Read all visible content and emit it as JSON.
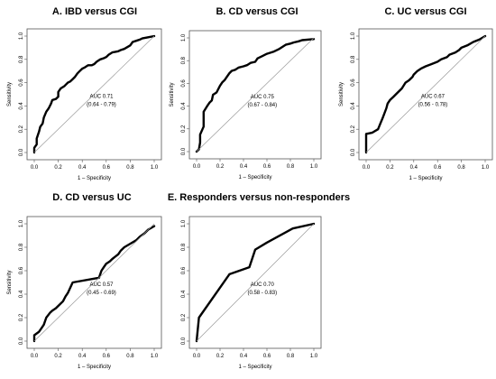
{
  "chart_data": [
    {
      "type": "line",
      "title": "A. IBD versus CGI",
      "xlabel": "1 – Specificity",
      "ylabel": "Sensitivity",
      "xlim": [
        0,
        1
      ],
      "ylim": [
        0,
        1
      ],
      "xticks": [
        "0.0",
        "0.2",
        "0.4",
        "0.6",
        "0.8",
        "1.0"
      ],
      "yticks": [
        "0.0",
        "0.2",
        "0.4",
        "0.6",
        "0.8",
        "1.0"
      ],
      "auc": "AUC 0.71",
      "ci": "(0.64 - 0.79)",
      "grid": false,
      "series": [
        {
          "x": [
            0,
            0,
            0.02,
            0.02,
            0.04,
            0.05,
            0.07,
            0.08,
            0.1,
            0.12,
            0.14,
            0.15,
            0.18,
            0.2,
            0.2,
            0.22,
            0.25,
            0.26,
            0.28,
            0.3,
            0.32,
            0.34,
            0.36,
            0.38,
            0.4,
            0.42,
            0.45,
            0.48,
            0.5,
            0.52,
            0.55,
            0.58,
            0.6,
            0.62,
            0.65,
            0.7,
            0.72,
            0.75,
            0.8,
            0.82,
            0.85,
            0.88,
            0.9,
            0.95,
            1
          ],
          "y": [
            0,
            0.04,
            0.07,
            0.12,
            0.18,
            0.22,
            0.25,
            0.3,
            0.35,
            0.38,
            0.42,
            0.45,
            0.46,
            0.48,
            0.52,
            0.55,
            0.57,
            0.58,
            0.6,
            0.61,
            0.63,
            0.65,
            0.68,
            0.7,
            0.72,
            0.73,
            0.75,
            0.75,
            0.76,
            0.78,
            0.8,
            0.81,
            0.82,
            0.84,
            0.86,
            0.87,
            0.88,
            0.89,
            0.92,
            0.95,
            0.96,
            0.97,
            0.98,
            0.99,
            1
          ]
        },
        {
          "x": [
            0,
            1
          ],
          "y": [
            0,
            1
          ]
        }
      ]
    },
    {
      "type": "line",
      "title": "B. CD versus CGI",
      "xlabel": "1 – Specificity",
      "ylabel": "Sensitivity",
      "xlim": [
        0,
        1
      ],
      "ylim": [
        0,
        1
      ],
      "xticks": [
        "0.0",
        "0.2",
        "0.4",
        "0.6",
        "0.8",
        "1.0"
      ],
      "yticks": [
        "0.0",
        "0.2",
        "0.4",
        "0.6",
        "0.8",
        "1.0"
      ],
      "auc": "AUC 0.75",
      "ci": "(0.67 - 0.84)",
      "grid": false,
      "series": [
        {
          "x": [
            0,
            0.02,
            0.03,
            0.03,
            0.06,
            0.06,
            0.09,
            0.11,
            0.13,
            0.14,
            0.17,
            0.19,
            0.2,
            0.22,
            0.24,
            0.26,
            0.28,
            0.3,
            0.33,
            0.36,
            0.4,
            0.43,
            0.46,
            0.5,
            0.52,
            0.56,
            0.6,
            0.63,
            0.66,
            0.7,
            0.73,
            0.76,
            0.8,
            0.83,
            0.87,
            0.9,
            1
          ],
          "y": [
            0,
            0.02,
            0.08,
            0.15,
            0.22,
            0.35,
            0.4,
            0.43,
            0.45,
            0.5,
            0.52,
            0.56,
            0.58,
            0.61,
            0.63,
            0.66,
            0.69,
            0.71,
            0.72,
            0.74,
            0.75,
            0.76,
            0.78,
            0.79,
            0.82,
            0.84,
            0.86,
            0.87,
            0.88,
            0.9,
            0.92,
            0.94,
            0.95,
            0.96,
            0.97,
            0.98,
            0.99
          ]
        },
        {
          "x": [
            0,
            1
          ],
          "y": [
            0,
            1
          ]
        }
      ]
    },
    {
      "type": "line",
      "title": "C. UC versus CGI",
      "xlabel": "1 – Specificity",
      "ylabel": "Sensitivity",
      "xlim": [
        0,
        1
      ],
      "ylim": [
        0,
        1
      ],
      "xticks": [
        "0.0",
        "0.2",
        "0.4",
        "0.6",
        "0.8",
        "1.0"
      ],
      "yticks": [
        "0.0",
        "0.2",
        "0.4",
        "0.6",
        "0.8",
        "1.0"
      ],
      "auc": "AUC 0.67",
      "ci": "(0.56 - 0.78)",
      "grid": false,
      "series": [
        {
          "x": [
            0,
            0,
            0.05,
            0.1,
            0.12,
            0.14,
            0.17,
            0.18,
            0.2,
            0.23,
            0.25,
            0.3,
            0.33,
            0.36,
            0.39,
            0.4,
            0.43,
            0.46,
            0.5,
            0.55,
            0.6,
            0.63,
            0.68,
            0.7,
            0.75,
            0.78,
            0.8,
            0.85,
            0.9,
            0.95,
            1
          ],
          "y": [
            0,
            0.16,
            0.17,
            0.2,
            0.25,
            0.3,
            0.38,
            0.42,
            0.45,
            0.48,
            0.5,
            0.55,
            0.6,
            0.62,
            0.65,
            0.67,
            0.7,
            0.72,
            0.74,
            0.76,
            0.78,
            0.8,
            0.82,
            0.84,
            0.86,
            0.88,
            0.9,
            0.92,
            0.95,
            0.97,
            1
          ]
        },
        {
          "x": [
            0,
            1
          ],
          "y": [
            0,
            1
          ]
        }
      ]
    },
    {
      "type": "line",
      "title": "D. CD versus UC",
      "xlabel": "1 – Specificity",
      "ylabel": "Sensitivity",
      "xlim": [
        0,
        1
      ],
      "ylim": [
        0,
        1
      ],
      "xticks": [
        "0.0",
        "0.2",
        "0.4",
        "0.6",
        "0.8",
        "1.0"
      ],
      "yticks": [
        "0.0",
        "0.2",
        "0.4",
        "0.6",
        "0.8",
        "1.0"
      ],
      "auc": "AUC 0.57",
      "ci": "(0.45 - 0.69)",
      "grid": false,
      "series": [
        {
          "x": [
            0,
            0,
            0.04,
            0.06,
            0.08,
            0.1,
            0.13,
            0.15,
            0.18,
            0.2,
            0.24,
            0.26,
            0.28,
            0.32,
            0.54,
            0.56,
            0.58,
            0.6,
            0.63,
            0.65,
            0.7,
            0.72,
            0.75,
            0.8,
            0.85,
            0.88,
            0.92,
            0.95,
            1
          ],
          "y": [
            0,
            0.05,
            0.08,
            0.11,
            0.14,
            0.2,
            0.24,
            0.26,
            0.28,
            0.3,
            0.34,
            0.38,
            0.41,
            0.5,
            0.54,
            0.6,
            0.63,
            0.66,
            0.68,
            0.7,
            0.74,
            0.77,
            0.8,
            0.83,
            0.86,
            0.89,
            0.92,
            0.95,
            0.98
          ]
        },
        {
          "x": [
            0,
            1
          ],
          "y": [
            0,
            1
          ]
        }
      ]
    },
    {
      "type": "line",
      "title": "E. Responders versus non-responders",
      "xlabel": "1 – Specificity",
      "ylabel": "",
      "xlim": [
        0,
        1
      ],
      "ylim": [
        0,
        1
      ],
      "xticks": [
        "0.0",
        "0.2",
        "0.4",
        "0.6",
        "0.8",
        "1.0"
      ],
      "yticks": [
        "0.0",
        "0.2",
        "0.4",
        "0.6",
        "0.8",
        "1.0"
      ],
      "auc": "AUC 0.70",
      "ci": "(0.58 - 0.83)",
      "grid": false,
      "series": [
        {
          "x": [
            0,
            0.02,
            0.28,
            0.45,
            0.5,
            0.6,
            0.82,
            1
          ],
          "y": [
            0,
            0.2,
            0.57,
            0.63,
            0.78,
            0.84,
            0.96,
            1
          ]
        },
        {
          "x": [
            0,
            1
          ],
          "y": [
            0,
            1
          ]
        }
      ]
    }
  ]
}
